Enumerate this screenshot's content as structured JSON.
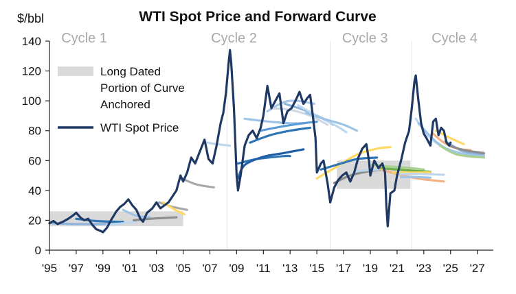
{
  "chart_data": {
    "type": "line",
    "title": "WTI Spot Price and Forward Curve",
    "ylabel": "$/bbl",
    "xlabel": "",
    "ylim": [
      0,
      140
    ],
    "xlim": [
      1995,
      2028.2
    ],
    "yticks": [
      0,
      20,
      40,
      60,
      80,
      100,
      120,
      140
    ],
    "xticks": [
      {
        "x": 1995,
        "label": "'95"
      },
      {
        "x": 1997,
        "label": "'97"
      },
      {
        "x": 1999,
        "label": "'99"
      },
      {
        "x": 2001,
        "label": "'01"
      },
      {
        "x": 2003,
        "label": "'03"
      },
      {
        "x": 2005,
        "label": "'05"
      },
      {
        "x": 2007,
        "label": "'07"
      },
      {
        "x": 2009,
        "label": "'09"
      },
      {
        "x": 2011,
        "label": "'11"
      },
      {
        "x": 2013,
        "label": "'13"
      },
      {
        "x": 2015,
        "label": "'15"
      },
      {
        "x": 2017,
        "label": "'17"
      },
      {
        "x": 2019,
        "label": "'19"
      },
      {
        "x": 2021,
        "label": "'21"
      },
      {
        "x": 2023,
        "label": "'23"
      },
      {
        "x": 2025,
        "label": "'25"
      },
      {
        "x": 2027,
        "label": "'27"
      }
    ],
    "grid": false,
    "legend": {
      "position": "top-left",
      "entries": [
        {
          "label_lines": [
            "Long Dated",
            "Portion of Curve",
            "Anchored"
          ],
          "style": "band",
          "color": "#d9d9d9"
        },
        {
          "label_lines": [
            "WTI Spot Price"
          ],
          "style": "line",
          "color": "#1f3864"
        }
      ]
    },
    "cycles": [
      {
        "label": "Cycle 1",
        "x": 1997.6
      },
      {
        "label": "Cycle 2",
        "x": 2008.8
      },
      {
        "label": "Cycle 3",
        "x": 2018.6
      },
      {
        "label": "Cycle 4",
        "x": 2025.3
      }
    ],
    "cycle_dividers": [
      2008.3,
      2016.0,
      2022.1
    ],
    "anchored_bands": [
      {
        "x0": 1995.0,
        "x1": 2005.0,
        "y0": 16,
        "y1": 26
      },
      {
        "x0": 2016.5,
        "x1": 2022.0,
        "y0": 41,
        "y1": 60
      }
    ],
    "series": [
      {
        "name": "WTI Spot Price",
        "color": "#1f3864",
        "points": [
          [
            1995.0,
            18
          ],
          [
            1995.3,
            19.5
          ],
          [
            1995.6,
            17.5
          ],
          [
            1996.0,
            19
          ],
          [
            1996.4,
            21
          ],
          [
            1996.8,
            23.5
          ],
          [
            1997.0,
            25
          ],
          [
            1997.3,
            22
          ],
          [
            1997.6,
            20
          ],
          [
            1997.9,
            21
          ],
          [
            1998.2,
            17
          ],
          [
            1998.5,
            14
          ],
          [
            1998.8,
            13
          ],
          [
            1999.0,
            12
          ],
          [
            1999.3,
            15
          ],
          [
            1999.6,
            20
          ],
          [
            2000.0,
            26
          ],
          [
            2000.3,
            29
          ],
          [
            2000.6,
            31
          ],
          [
            2000.9,
            34
          ],
          [
            2001.2,
            30
          ],
          [
            2001.5,
            27
          ],
          [
            2001.8,
            21
          ],
          [
            2002.0,
            19
          ],
          [
            2002.3,
            25
          ],
          [
            2002.7,
            28
          ],
          [
            2003.0,
            32
          ],
          [
            2003.3,
            28
          ],
          [
            2003.6,
            30
          ],
          [
            2003.9,
            32
          ],
          [
            2004.2,
            36
          ],
          [
            2004.5,
            40
          ],
          [
            2004.8,
            50
          ],
          [
            2005.0,
            46
          ],
          [
            2005.3,
            52
          ],
          [
            2005.6,
            62
          ],
          [
            2005.9,
            58
          ],
          [
            2006.2,
            65
          ],
          [
            2006.6,
            74
          ],
          [
            2006.9,
            61
          ],
          [
            2007.2,
            58
          ],
          [
            2007.5,
            70
          ],
          [
            2007.8,
            85
          ],
          [
            2008.0,
            92
          ],
          [
            2008.2,
            105
          ],
          [
            2008.4,
            125
          ],
          [
            2008.5,
            134
          ],
          [
            2008.6,
            125
          ],
          [
            2008.8,
            95
          ],
          [
            2009.0,
            50
          ],
          [
            2009.1,
            40
          ],
          [
            2009.3,
            50
          ],
          [
            2009.6,
            70
          ],
          [
            2009.9,
            77
          ],
          [
            2010.2,
            80
          ],
          [
            2010.5,
            75
          ],
          [
            2010.8,
            82
          ],
          [
            2011.0,
            90
          ],
          [
            2011.3,
            110
          ],
          [
            2011.6,
            95
          ],
          [
            2011.9,
            100
          ],
          [
            2012.2,
            105
          ],
          [
            2012.5,
            85
          ],
          [
            2012.8,
            93
          ],
          [
            2013.1,
            95
          ],
          [
            2013.4,
            100
          ],
          [
            2013.7,
            106
          ],
          [
            2014.0,
            98
          ],
          [
            2014.3,
            102
          ],
          [
            2014.5,
            104
          ],
          [
            2014.7,
            90
          ],
          [
            2014.9,
            75
          ],
          [
            2015.0,
            52
          ],
          [
            2015.3,
            58
          ],
          [
            2015.5,
            60
          ],
          [
            2015.8,
            45
          ],
          [
            2016.0,
            32
          ],
          [
            2016.3,
            42
          ],
          [
            2016.6,
            47
          ],
          [
            2016.9,
            50
          ],
          [
            2017.2,
            52
          ],
          [
            2017.5,
            46
          ],
          [
            2017.8,
            52
          ],
          [
            2018.1,
            62
          ],
          [
            2018.4,
            68
          ],
          [
            2018.7,
            71
          ],
          [
            2018.9,
            60
          ],
          [
            2019.0,
            50
          ],
          [
            2019.3,
            60
          ],
          [
            2019.6,
            55
          ],
          [
            2019.9,
            58
          ],
          [
            2020.1,
            52
          ],
          [
            2020.2,
            30
          ],
          [
            2020.3,
            16
          ],
          [
            2020.5,
            38
          ],
          [
            2020.8,
            40
          ],
          [
            2021.0,
            50
          ],
          [
            2021.3,
            60
          ],
          [
            2021.6,
            72
          ],
          [
            2021.9,
            80
          ],
          [
            2022.1,
            95
          ],
          [
            2022.3,
            113
          ],
          [
            2022.4,
            117
          ],
          [
            2022.6,
            100
          ],
          [
            2022.8,
            85
          ],
          [
            2023.0,
            78
          ],
          [
            2023.2,
            75
          ],
          [
            2023.5,
            70
          ],
          [
            2023.7,
            86
          ],
          [
            2023.9,
            88
          ],
          [
            2024.1,
            77
          ],
          [
            2024.3,
            82
          ],
          [
            2024.5,
            80
          ],
          [
            2024.7,
            72
          ],
          [
            2024.9,
            70
          ],
          [
            2025.0,
            72
          ]
        ]
      }
    ],
    "forward_curves": [
      {
        "color": "#8fb4dc",
        "points": [
          [
            1995.2,
            18
          ],
          [
            1997,
            17.5
          ],
          [
            1999,
            17.5
          ],
          [
            2000.5,
            18
          ]
        ]
      },
      {
        "color": "#2e75b6",
        "points": [
          [
            1997,
            21
          ],
          [
            1998.5,
            19.5
          ],
          [
            2000,
            19
          ],
          [
            2000.5,
            19
          ]
        ]
      },
      {
        "color": "#bdd7ee",
        "points": [
          [
            1999.3,
            17
          ],
          [
            2000.5,
            18
          ],
          [
            2001.5,
            19
          ]
        ]
      },
      {
        "color": "#9dc3e6",
        "points": [
          [
            2000.5,
            27
          ],
          [
            2001.5,
            23
          ],
          [
            2002.5,
            22
          ]
        ]
      },
      {
        "color": "#8c8c8c",
        "points": [
          [
            2001.3,
            20
          ],
          [
            2002.5,
            21
          ],
          [
            2004.5,
            22
          ]
        ]
      },
      {
        "color": "#a9a9a9",
        "points": [
          [
            2003.2,
            32
          ],
          [
            2004.2,
            29
          ],
          [
            2005.3,
            27
          ]
        ]
      },
      {
        "color": "#ffd966",
        "points": [
          [
            2003.5,
            32
          ],
          [
            2004.4,
            27
          ],
          [
            2005.1,
            24
          ]
        ]
      },
      {
        "color": "#a9a9a9",
        "points": [
          [
            2004.9,
            48
          ],
          [
            2006,
            44
          ],
          [
            2007.3,
            42
          ]
        ]
      },
      {
        "color": "#bdd7ee",
        "points": [
          [
            2006.8,
            72
          ],
          [
            2007.5,
            71
          ],
          [
            2008.5,
            70
          ]
        ]
      },
      {
        "color": "#2e75b6",
        "points": [
          [
            2009.1,
            58
          ],
          [
            2010.5,
            61
          ],
          [
            2012.5,
            63
          ],
          [
            2013,
            63
          ]
        ]
      },
      {
        "color": "#1f5fa8",
        "points": [
          [
            2009.1,
            48
          ],
          [
            2009.6,
            57
          ],
          [
            2011,
            62.5
          ],
          [
            2012.5,
            65
          ],
          [
            2014,
            67.5
          ]
        ]
      },
      {
        "color": "#9dc3e6",
        "points": [
          [
            2009.6,
            88
          ],
          [
            2011.5,
            86
          ],
          [
            2013,
            85
          ],
          [
            2014,
            85
          ]
        ]
      },
      {
        "color": "#2e75b6",
        "points": [
          [
            2010,
            72
          ],
          [
            2011.5,
            77
          ],
          [
            2013,
            80
          ],
          [
            2014.5,
            82
          ]
        ]
      },
      {
        "color": "#5b9bd5",
        "points": [
          [
            2010.8,
            80
          ],
          [
            2012.5,
            83
          ],
          [
            2014,
            85
          ],
          [
            2015,
            86
          ]
        ]
      },
      {
        "color": "#a9c7e8",
        "points": [
          [
            2011.3,
            93
          ],
          [
            2012.5,
            99
          ],
          [
            2013.5,
            100
          ],
          [
            2014.8,
            98
          ]
        ]
      },
      {
        "color": "#cfd8e3",
        "points": [
          [
            2011.6,
            95
          ],
          [
            2013,
            94
          ],
          [
            2014.5,
            90
          ],
          [
            2015.8,
            84
          ]
        ]
      },
      {
        "color": "#8fb4dc",
        "points": [
          [
            2012.6,
            98
          ],
          [
            2014,
            94
          ],
          [
            2015.5,
            88
          ],
          [
            2016.2,
            84
          ]
        ]
      },
      {
        "color": "#bdd7ee",
        "points": [
          [
            2013.6,
            97
          ],
          [
            2015,
            90
          ],
          [
            2016.5,
            83
          ],
          [
            2017.2,
            79
          ]
        ]
      },
      {
        "color": "#9dc3e6",
        "points": [
          [
            2014.2,
            92
          ],
          [
            2015.5,
            88
          ],
          [
            2017,
            84
          ],
          [
            2018,
            80
          ]
        ]
      },
      {
        "color": "#ffd966",
        "points": [
          [
            2015.0,
            48
          ],
          [
            2016.5,
            56
          ],
          [
            2018,
            64
          ],
          [
            2019.5,
            68
          ],
          [
            2020.5,
            69
          ]
        ]
      },
      {
        "color": "#2e75b6",
        "points": [
          [
            2015.3,
            54
          ],
          [
            2016.8,
            58
          ],
          [
            2018,
            61
          ],
          [
            2019.5,
            62
          ]
        ]
      },
      {
        "color": "#8c8c8c",
        "points": [
          [
            2016.3,
            45
          ],
          [
            2017.5,
            50
          ],
          [
            2019,
            53
          ],
          [
            2020,
            54
          ]
        ]
      },
      {
        "color": "#bdd7ee",
        "points": [
          [
            2018,
            53
          ],
          [
            2019.5,
            54
          ],
          [
            2021,
            55
          ]
        ]
      },
      {
        "color": "#a9d18e",
        "points": [
          [
            2019.1,
            57
          ],
          [
            2020.5,
            56
          ],
          [
            2022,
            55
          ],
          [
            2023,
            54
          ]
        ]
      },
      {
        "color": "#70ad47",
        "points": [
          [
            2019.6,
            55
          ],
          [
            2021,
            54
          ],
          [
            2022.5,
            53
          ],
          [
            2023.5,
            52.5
          ]
        ]
      },
      {
        "color": "#f4b183",
        "points": [
          [
            2019.8,
            54
          ],
          [
            2021,
            51
          ],
          [
            2022.5,
            48
          ],
          [
            2024.5,
            46
          ]
        ]
      },
      {
        "color": "#ffd966",
        "points": [
          [
            2020.7,
            52
          ],
          [
            2022,
            52
          ],
          [
            2023.5,
            52
          ]
        ]
      },
      {
        "color": "#bdd7ee",
        "points": [
          [
            2021,
            51
          ],
          [
            2022.5,
            51
          ],
          [
            2024.5,
            50.5
          ]
        ]
      },
      {
        "color": "#9dc3e6",
        "points": [
          [
            2021.3,
            49
          ],
          [
            2022.5,
            49
          ],
          [
            2023.5,
            48.5
          ]
        ]
      },
      {
        "color": "#bdd7ee",
        "points": [
          [
            2022.4,
            88
          ],
          [
            2023.5,
            75
          ],
          [
            2025,
            67
          ],
          [
            2027.5,
            63
          ]
        ]
      },
      {
        "color": "#9dc3e6",
        "points": [
          [
            2022.6,
            85
          ],
          [
            2024,
            72
          ],
          [
            2025.5,
            65
          ],
          [
            2027.5,
            63
          ]
        ]
      },
      {
        "color": "#f4b183",
        "points": [
          [
            2023.7,
            78
          ],
          [
            2024.5,
            72
          ],
          [
            2025.5,
            68
          ],
          [
            2026.5,
            67
          ]
        ]
      },
      {
        "color": "#ffd966",
        "points": [
          [
            2023.9,
            80
          ],
          [
            2025,
            75
          ],
          [
            2026,
            71
          ]
        ]
      },
      {
        "color": "#a9d18e",
        "points": [
          [
            2024.2,
            70
          ],
          [
            2025.5,
            64
          ],
          [
            2027.5,
            62
          ]
        ]
      },
      {
        "color": "#8fb4dc",
        "points": [
          [
            2024.6,
            73
          ],
          [
            2026,
            66
          ],
          [
            2027.5,
            64.5
          ]
        ]
      },
      {
        "color": "#8c8c8c",
        "points": [
          [
            2024.9,
            70
          ],
          [
            2026,
            67
          ],
          [
            2027.5,
            65
          ]
        ]
      }
    ]
  }
}
